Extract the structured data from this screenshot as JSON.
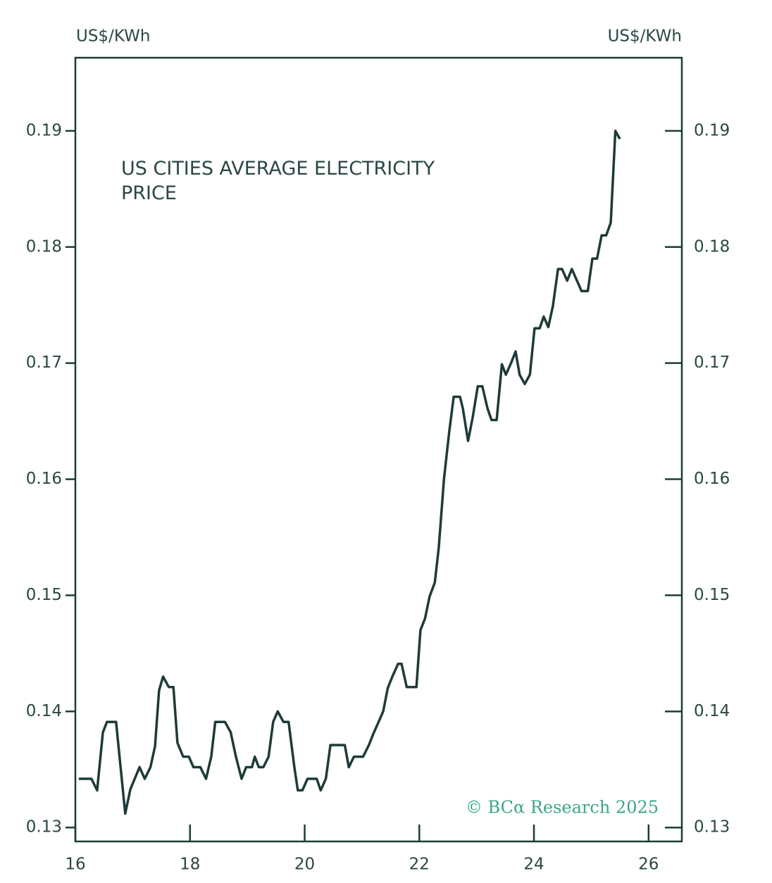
{
  "chart_data": {
    "type": "line",
    "title": "US CITIES AVERAGE ELECTRICITY PRICE",
    "y_axis_label": "US$/KWh",
    "y2_axis_label": "US$/KWh",
    "source": "© BCα Research 2025",
    "xlim": [
      16,
      26.58
    ],
    "xticks": [
      16,
      18,
      20,
      22,
      24,
      26
    ],
    "ylim": [
      0.1288,
      0.1963
    ],
    "yticks": [
      0.13,
      0.14,
      0.15,
      0.16,
      0.17,
      0.18,
      0.19
    ],
    "y2lim": [
      0.1288,
      0.1963
    ],
    "y2ticks": [
      0.13,
      0.14,
      0.15,
      0.16,
      0.17,
      0.18,
      0.19
    ],
    "grid": false,
    "x": [
      16.06,
      16.28,
      16.38,
      16.48,
      16.55,
      16.71,
      16.77,
      16.87,
      16.96,
      17.12,
      17.21,
      17.31,
      17.39,
      17.46,
      17.53,
      17.63,
      17.71,
      17.78,
      17.88,
      17.98,
      18.06,
      18.18,
      18.28,
      18.37,
      18.44,
      18.61,
      18.71,
      18.8,
      18.9,
      18.98,
      19.08,
      19.13,
      19.2,
      19.28,
      19.37,
      19.45,
      19.53,
      19.63,
      19.72,
      19.82,
      19.88,
      19.96,
      20.05,
      20.21,
      20.28,
      20.37,
      20.45,
      20.7,
      20.77,
      20.86,
      21.02,
      21.12,
      21.2,
      21.29,
      21.37,
      21.45,
      21.53,
      21.63,
      21.69,
      21.78,
      21.95,
      22.02,
      22.1,
      22.18,
      22.27,
      22.34,
      22.43,
      22.52,
      22.6,
      22.71,
      22.76,
      22.85,
      22.93,
      23.02,
      23.1,
      23.19,
      23.26,
      23.35,
      23.44,
      23.51,
      23.6,
      23.68,
      23.75,
      23.84,
      23.93,
      24.01,
      24.1,
      24.17,
      24.25,
      24.33,
      24.42,
      24.49,
      24.58,
      24.66,
      24.75,
      24.83,
      24.94,
      25.02,
      25.1,
      25.18,
      25.26,
      25.34,
      25.42,
      25.5
    ],
    "series": [
      {
        "name": "US cities average electricity price",
        "color": "#1d3b38",
        "values": [
          0.1342,
          0.1342,
          0.1332,
          0.1382,
          0.1391,
          0.1391,
          0.1361,
          0.1312,
          0.1333,
          0.1352,
          0.1342,
          0.1352,
          0.137,
          0.1418,
          0.143,
          0.1421,
          0.1421,
          0.1373,
          0.1361,
          0.1361,
          0.1352,
          0.1352,
          0.1342,
          0.1361,
          0.1391,
          0.1391,
          0.1382,
          0.1361,
          0.1342,
          0.1352,
          0.1352,
          0.1361,
          0.1352,
          0.1352,
          0.1361,
          0.1391,
          0.14,
          0.1391,
          0.1391,
          0.1352,
          0.1332,
          0.1332,
          0.1342,
          0.1342,
          0.1332,
          0.1342,
          0.1371,
          0.1371,
          0.1352,
          0.1361,
          0.1361,
          0.1371,
          0.1381,
          0.1391,
          0.14,
          0.142,
          0.143,
          0.1441,
          0.1441,
          0.1421,
          0.1421,
          0.147,
          0.148,
          0.1499,
          0.1511,
          0.1541,
          0.16,
          0.164,
          0.1671,
          0.1671,
          0.1661,
          0.1633,
          0.1653,
          0.168,
          0.168,
          0.1661,
          0.1651,
          0.1651,
          0.1699,
          0.169,
          0.17,
          0.171,
          0.169,
          0.1682,
          0.169,
          0.173,
          0.173,
          0.174,
          0.1731,
          0.1749,
          0.1781,
          0.1781,
          0.1771,
          0.1781,
          0.1771,
          0.1762,
          0.1762,
          0.179,
          0.179,
          0.181,
          0.181,
          0.1821,
          0.19,
          0.1893
        ]
      }
    ]
  }
}
